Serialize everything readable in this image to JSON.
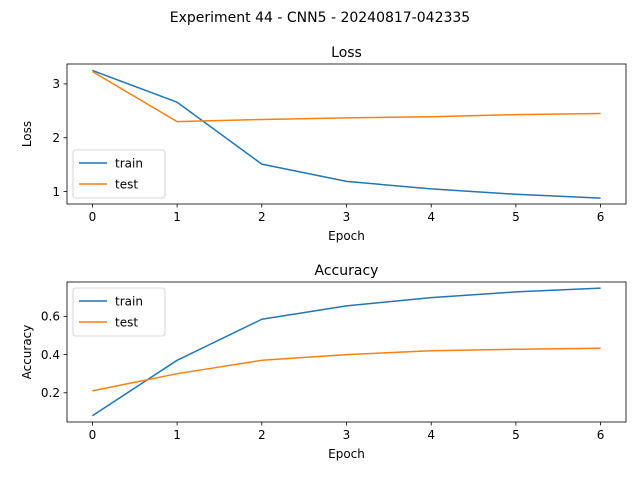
{
  "figure": {
    "suptitle": "Experiment 44 - CNN5 - 20240817-042335"
  },
  "colors": {
    "train": "#1f77b4",
    "test": "#ff7f0e"
  },
  "chart_data": [
    {
      "type": "line",
      "title": "Loss",
      "xlabel": "Epoch",
      "ylabel": "Loss",
      "x": [
        0,
        1,
        2,
        3,
        4,
        5,
        6
      ],
      "xlim": [
        -0.3,
        6.3
      ],
      "ylim": [
        0.77,
        3.37
      ],
      "xticks": [
        0,
        1,
        2,
        3,
        4,
        5,
        6
      ],
      "yticks": [
        1,
        2,
        3
      ],
      "grid": false,
      "legend": "lower left",
      "series": [
        {
          "name": "train",
          "color": "#1f77b4",
          "values": [
            3.25,
            2.66,
            1.51,
            1.19,
            1.05,
            0.95,
            0.88
          ]
        },
        {
          "name": "test",
          "color": "#ff7f0e",
          "values": [
            3.23,
            2.3,
            2.34,
            2.37,
            2.39,
            2.43,
            2.45
          ]
        }
      ]
    },
    {
      "type": "line",
      "title": "Accuracy",
      "xlabel": "Epoch",
      "ylabel": "Accuracy",
      "x": [
        0,
        1,
        2,
        3,
        4,
        5,
        6
      ],
      "xlim": [
        -0.3,
        6.3
      ],
      "ylim": [
        0.047,
        0.78
      ],
      "xticks": [
        0,
        1,
        2,
        3,
        4,
        5,
        6
      ],
      "yticks": [
        0.2,
        0.4,
        0.6
      ],
      "grid": false,
      "legend": "upper left",
      "series": [
        {
          "name": "train",
          "color": "#1f77b4",
          "values": [
            0.08,
            0.37,
            0.585,
            0.655,
            0.698,
            0.728,
            0.748
          ]
        },
        {
          "name": "test",
          "color": "#ff7f0e",
          "values": [
            0.21,
            0.3,
            0.37,
            0.4,
            0.42,
            0.428,
            0.433
          ]
        }
      ]
    }
  ]
}
